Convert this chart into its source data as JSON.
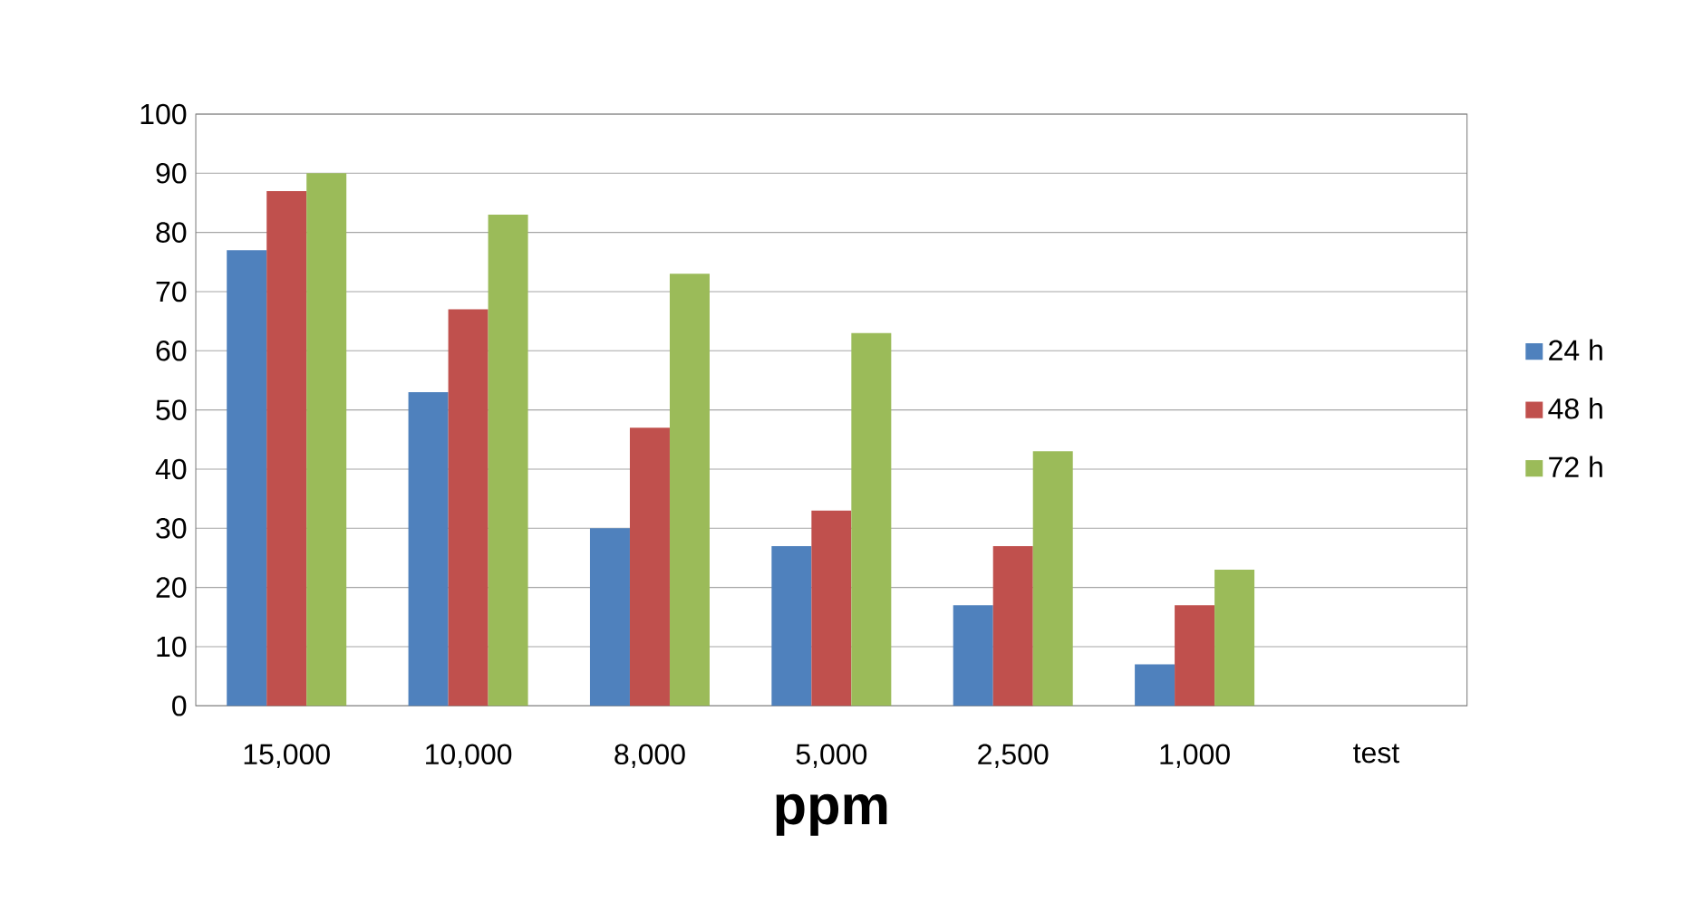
{
  "chart_data": {
    "type": "bar",
    "xlabel": "ppm",
    "categories": [
      "15,000",
      "10,000",
      "8,000",
      "5,000",
      "2,500",
      "1,000",
      "test"
    ],
    "series": [
      {
        "name": "24 h",
        "color": "#4f81bd",
        "values": [
          77,
          53,
          30,
          27,
          17,
          7,
          0
        ]
      },
      {
        "name": "48 h",
        "color": "#c0504d",
        "values": [
          87,
          67,
          47,
          33,
          27,
          17,
          0
        ]
      },
      {
        "name": "72 h",
        "color": "#9bbb59",
        "values": [
          90,
          83,
          73,
          63,
          43,
          23,
          0
        ]
      }
    ],
    "ylim": [
      0,
      100
    ],
    "yticks": [
      0,
      10,
      20,
      30,
      40,
      50,
      60,
      70,
      80,
      90,
      100
    ],
    "grid": "y",
    "legend": "right"
  }
}
